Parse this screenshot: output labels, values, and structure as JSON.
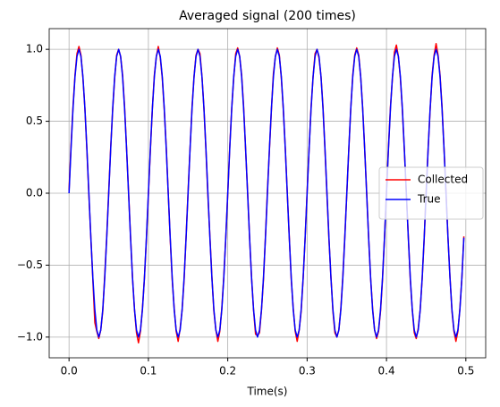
{
  "chart_data": {
    "type": "line",
    "title": "Averaged signal (200 times)",
    "x_label": "Time(s)",
    "x": [
      0,
      0.0025,
      0.005,
      0.0075,
      0.01,
      0.0125,
      0.015,
      0.0175,
      0.02,
      0.0225,
      0.025,
      0.0275,
      0.03,
      0.0325,
      0.035,
      0.0375,
      0.04,
      0.0425,
      0.045,
      0.0475,
      0.05,
      0.0525,
      0.055,
      0.0575,
      0.06,
      0.0625,
      0.065,
      0.0675,
      0.07,
      0.0725,
      0.075,
      0.0775,
      0.08,
      0.0825,
      0.085,
      0.0875,
      0.09,
      0.0925,
      0.095,
      0.0975,
      0.1,
      0.1025,
      0.105,
      0.1075,
      0.11,
      0.1125,
      0.115,
      0.1175,
      0.12,
      0.1225,
      0.125,
      0.1275,
      0.13,
      0.1325,
      0.135,
      0.1375,
      0.14,
      0.1425,
      0.145,
      0.1475,
      0.15,
      0.1525,
      0.155,
      0.1575,
      0.16,
      0.1625,
      0.165,
      0.1675,
      0.17,
      0.1725,
      0.175,
      0.1775,
      0.18,
      0.1825,
      0.185,
      0.1875,
      0.19,
      0.1925,
      0.195,
      0.1975,
      0.2,
      0.2025,
      0.205,
      0.2075,
      0.21,
      0.2125,
      0.215,
      0.2175,
      0.22,
      0.2225,
      0.225,
      0.2275,
      0.23,
      0.2325,
      0.235,
      0.2375,
      0.24,
      0.2425,
      0.245,
      0.2475,
      0.25,
      0.2525,
      0.255,
      0.2575,
      0.26,
      0.2625,
      0.265,
      0.2675,
      0.27,
      0.2725,
      0.275,
      0.2775,
      0.28,
      0.2825,
      0.285,
      0.2875,
      0.29,
      0.2925,
      0.295,
      0.2975,
      0.3,
      0.3025,
      0.305,
      0.3075,
      0.31,
      0.3125,
      0.315,
      0.3175,
      0.32,
      0.3225,
      0.325,
      0.3275,
      0.33,
      0.3325,
      0.335,
      0.3375,
      0.34,
      0.3425,
      0.345,
      0.3475,
      0.35,
      0.3525,
      0.355,
      0.3575,
      0.36,
      0.3625,
      0.365,
      0.3675,
      0.37,
      0.3725,
      0.375,
      0.3775,
      0.38,
      0.3825,
      0.385,
      0.3875,
      0.39,
      0.3925,
      0.395,
      0.3975,
      0.4,
      0.4025,
      0.405,
      0.4075,
      0.41,
      0.4125,
      0.415,
      0.4175,
      0.42,
      0.4225,
      0.425,
      0.4275,
      0.43,
      0.4325,
      0.435,
      0.4375,
      0.44,
      0.4425,
      0.445,
      0.4475,
      0.45,
      0.4525,
      0.455,
      0.4575,
      0.46,
      0.4625,
      0.465,
      0.4675,
      0.47,
      0.4725,
      0.475,
      0.4775,
      0.48,
      0.4825,
      0.485,
      0.4875,
      0.49,
      0.4925,
      0.495,
      0.4975
    ],
    "series": [
      {
        "name": "Collected",
        "color": "#ff0000",
        "values": [
          0.02,
          0.33,
          0.6,
          0.82,
          0.97,
          1.02,
          0.96,
          0.8,
          0.59,
          0.3,
          -0.01,
          -0.31,
          -0.6,
          -0.9,
          -0.96,
          -1.01,
          -0.95,
          -0.82,
          -0.57,
          -0.3,
          0.01,
          0.32,
          0.58,
          0.8,
          0.96,
          1.0,
          0.95,
          0.82,
          0.6,
          0.31,
          0.01,
          -0.3,
          -0.59,
          -0.81,
          -0.97,
          -1.04,
          -0.96,
          -0.8,
          -0.59,
          -0.32,
          -0.01,
          0.3,
          0.59,
          0.82,
          0.95,
          1.02,
          0.94,
          0.8,
          0.58,
          0.32,
          0.0,
          -0.32,
          -0.6,
          -0.8,
          -0.96,
          -1.03,
          -0.94,
          -0.81,
          -0.6,
          -0.3,
          0.01,
          0.31,
          0.6,
          0.81,
          0.96,
          1.0,
          0.97,
          0.81,
          0.59,
          0.3,
          -0.02,
          -0.3,
          -0.58,
          -0.82,
          -0.95,
          -1.03,
          -0.96,
          -0.8,
          -0.58,
          -0.31,
          0.0,
          0.32,
          0.59,
          0.8,
          0.97,
          1.01,
          0.95,
          0.82,
          0.6,
          0.3,
          0.01,
          -0.31,
          -0.59,
          -0.81,
          -0.98,
          -0.99,
          -0.97,
          -0.81,
          -0.6,
          -0.3,
          0.02,
          0.3,
          0.58,
          0.83,
          0.95,
          1.01,
          0.96,
          0.8,
          0.58,
          0.31,
          0.0,
          -0.3,
          -0.6,
          -0.8,
          -0.96,
          -1.03,
          -0.95,
          -0.82,
          -0.59,
          -0.31,
          0.01,
          0.31,
          0.6,
          0.81,
          0.97,
          1.0,
          0.94,
          0.81,
          0.6,
          0.3,
          -0.01,
          -0.32,
          -0.58,
          -0.82,
          -0.97,
          -1.0,
          -0.95,
          -0.8,
          -0.58,
          -0.3,
          0.0,
          0.3,
          0.59,
          0.82,
          0.96,
          1.01,
          0.96,
          0.81,
          0.59,
          0.31,
          0.01,
          -0.31,
          -0.59,
          -0.8,
          -0.95,
          -1.01,
          -0.96,
          -0.82,
          -0.6,
          -0.31,
          0.01,
          0.32,
          0.6,
          0.8,
          0.98,
          1.03,
          0.95,
          0.8,
          0.58,
          0.3,
          0.0,
          -0.3,
          -0.6,
          -0.81,
          -0.97,
          -1.01,
          -0.94,
          -0.81,
          -0.59,
          -0.32,
          0.02,
          0.31,
          0.58,
          0.82,
          0.96,
          1.04,
          0.96,
          0.82,
          0.6,
          0.31,
          0.01,
          -0.31,
          -0.58,
          -0.82,
          -0.96,
          -1.03,
          -0.96,
          -0.8,
          -0.59,
          -0.3
        ]
      },
      {
        "name": "True",
        "color": "#0000ff",
        "values": [
          0,
          0.309,
          0.588,
          0.809,
          0.951,
          1,
          0.951,
          0.809,
          0.588,
          0.309,
          0,
          -0.309,
          -0.588,
          -0.809,
          -0.951,
          -1,
          -0.951,
          -0.809,
          -0.588,
          -0.309,
          0,
          0.309,
          0.588,
          0.809,
          0.951,
          1,
          0.951,
          0.809,
          0.588,
          0.309,
          0,
          -0.309,
          -0.588,
          -0.809,
          -0.951,
          -1,
          -0.951,
          -0.809,
          -0.588,
          -0.309,
          0,
          0.309,
          0.588,
          0.809,
          0.951,
          1,
          0.951,
          0.809,
          0.588,
          0.309,
          0,
          -0.309,
          -0.588,
          -0.809,
          -0.951,
          -1,
          -0.951,
          -0.809,
          -0.588,
          -0.309,
          0,
          0.309,
          0.588,
          0.809,
          0.951,
          1,
          0.951,
          0.809,
          0.588,
          0.309,
          0,
          -0.309,
          -0.588,
          -0.809,
          -0.951,
          -1,
          -0.951,
          -0.809,
          -0.588,
          -0.309,
          0,
          0.309,
          0.588,
          0.809,
          0.951,
          1,
          0.951,
          0.809,
          0.588,
          0.309,
          0,
          -0.309,
          -0.588,
          -0.809,
          -0.951,
          -1,
          -0.951,
          -0.809,
          -0.588,
          -0.309,
          0,
          0.309,
          0.588,
          0.809,
          0.951,
          1,
          0.951,
          0.809,
          0.588,
          0.309,
          0,
          -0.309,
          -0.588,
          -0.809,
          -0.951,
          -1,
          -0.951,
          -0.809,
          -0.588,
          -0.309,
          0,
          0.309,
          0.588,
          0.809,
          0.951,
          1,
          0.951,
          0.809,
          0.588,
          0.309,
          0,
          -0.309,
          -0.588,
          -0.809,
          -0.951,
          -1,
          -0.951,
          -0.809,
          -0.588,
          -0.309,
          0,
          0.309,
          0.588,
          0.809,
          0.951,
          1,
          0.951,
          0.809,
          0.588,
          0.309,
          0,
          -0.309,
          -0.588,
          -0.809,
          -0.951,
          -1,
          -0.951,
          -0.809,
          -0.588,
          -0.309,
          0,
          0.309,
          0.588,
          0.809,
          0.951,
          1,
          0.951,
          0.809,
          0.588,
          0.309,
          0,
          -0.309,
          -0.588,
          -0.809,
          -0.951,
          -1,
          -0.951,
          -0.809,
          -0.588,
          -0.309,
          0,
          0.309,
          0.588,
          0.809,
          0.951,
          1,
          0.951,
          0.809,
          0.588,
          0.309,
          0,
          -0.309,
          -0.588,
          -0.809,
          -0.951,
          -1,
          -0.951,
          -0.809,
          -0.588,
          -0.309
        ]
      }
    ],
    "xlim": [
      -0.025,
      0.525
    ],
    "ylim": [
      -1.144,
      1.144
    ],
    "xticks": [
      {
        "value": 0,
        "label": "0.0"
      },
      {
        "value": 0.1,
        "label": "0.1"
      },
      {
        "value": 0.2,
        "label": "0.2"
      },
      {
        "value": 0.3,
        "label": "0.3"
      },
      {
        "value": 0.4,
        "label": "0.4"
      },
      {
        "value": 0.5,
        "label": "0.5"
      }
    ],
    "yticks": [
      {
        "value": -1,
        "label": "−1.0"
      },
      {
        "value": -0.5,
        "label": "−0.5"
      },
      {
        "value": 0,
        "label": "0.0"
      },
      {
        "value": 0.5,
        "label": "0.5"
      },
      {
        "value": 1,
        "label": "1.0"
      }
    ],
    "grid": true,
    "legend": "center right"
  }
}
